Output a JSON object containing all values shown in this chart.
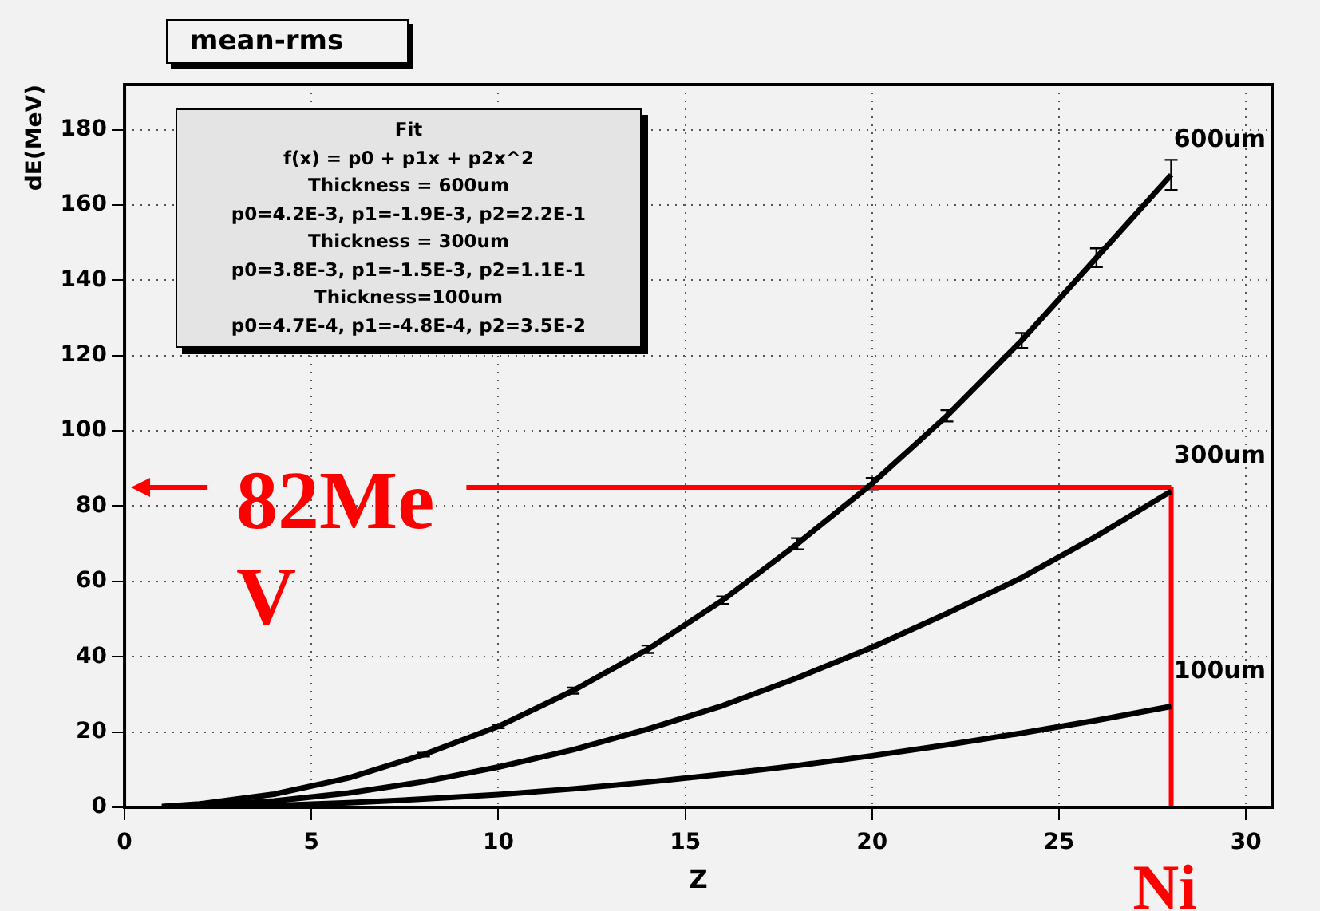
{
  "chart_data": {
    "type": "line",
    "title": "mean-rms",
    "xlabel": "Z",
    "ylabel": "dE(MeV)",
    "xlim": [
      0,
      30.7
    ],
    "ylim": [
      0,
      192
    ],
    "xticks": [
      0,
      5,
      10,
      15,
      20,
      25,
      30
    ],
    "yticks": [
      0,
      20,
      40,
      60,
      80,
      100,
      120,
      140,
      160,
      180
    ],
    "grid": true,
    "legend": false,
    "marker": "none",
    "line_style": "solid",
    "series": [
      {
        "name": "600um",
        "color": "#000000",
        "x": [
          1,
          2,
          4,
          6,
          8,
          10,
          12,
          14,
          16,
          18,
          20,
          22,
          24,
          26,
          28
        ],
        "values": [
          0.2,
          0.9,
          3.5,
          7.8,
          14,
          21.5,
          31,
          42,
          55,
          70,
          86,
          104,
          124,
          146,
          168
        ],
        "errors": [
          null,
          null,
          null,
          null,
          0.5,
          0.5,
          0.8,
          1,
          1,
          1.5,
          1.5,
          1.5,
          2,
          2.5,
          4
        ]
      },
      {
        "name": "300um",
        "color": "#000000",
        "x": [
          1,
          2,
          4,
          6,
          8,
          10,
          12,
          14,
          16,
          18,
          20,
          22,
          24,
          26,
          28
        ],
        "values": [
          0.1,
          0.4,
          1.7,
          3.8,
          6.8,
          10.7,
          15.3,
          20.8,
          27,
          34.4,
          42.5,
          51.5,
          61,
          72,
          84
        ]
      },
      {
        "name": "100um",
        "color": "#000000",
        "x": [
          1,
          2,
          4,
          6,
          8,
          10,
          12,
          14,
          16,
          18,
          20,
          22,
          24,
          26,
          28
        ],
        "values": [
          0,
          0.1,
          0.5,
          1.2,
          2.2,
          3.4,
          4.9,
          6.7,
          8.8,
          11.1,
          13.7,
          16.6,
          19.7,
          23.1,
          26.8
        ]
      }
    ],
    "ref_lines": [
      {
        "axis": "y",
        "value": 85,
        "label": "82MeV",
        "color": "#ff0000"
      },
      {
        "axis": "x",
        "value": 28,
        "label": "Ni",
        "color": "#ff0000"
      }
    ],
    "annotations": [
      "Fit",
      "f(x) = p0 + p1x + p2x^2",
      "Thickness = 600um",
      "p0=4.2E-3, p1=-1.9E-3, p2=2.2E-1",
      "Thickness = 300um",
      "p0=3.8E-3, p1=-1.5E-3, p2=1.1E-1",
      "Thickness=100um",
      "p0=4.7E-4, p1=-4.8E-4, p2=3.5E-2"
    ]
  }
}
